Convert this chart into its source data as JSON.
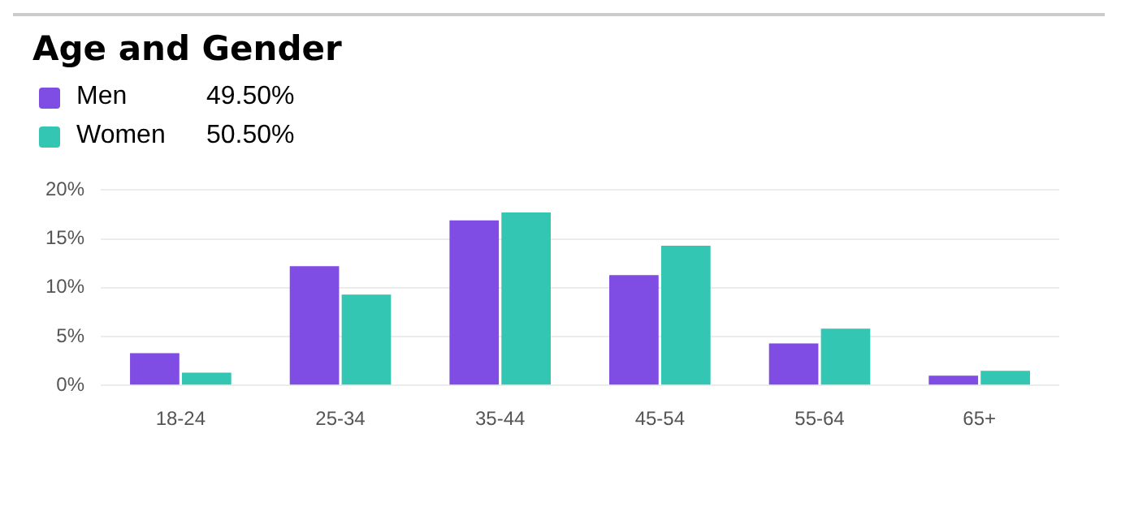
{
  "chart_data": {
    "type": "bar",
    "title": "Age and Gender",
    "categories": [
      "18-24",
      "25-34",
      "35-44",
      "45-54",
      "55-64",
      "65+"
    ],
    "series": [
      {
        "name": "Men",
        "color": "#7f4de3",
        "values": [
          3.3,
          12.2,
          16.9,
          11.3,
          4.3,
          1.0
        ]
      },
      {
        "name": "Women",
        "color": "#33c6b3",
        "values": [
          1.3,
          9.3,
          17.7,
          14.3,
          5.8,
          1.5
        ]
      }
    ],
    "annotations": [
      "49.50%",
      "50.50%"
    ],
    "ylim": [
      0,
      20
    ],
    "yticks": [
      {
        "value": 0,
        "label": "0%"
      },
      {
        "value": 5,
        "label": "5%"
      },
      {
        "value": 10,
        "label": "10%"
      },
      {
        "value": 15,
        "label": "15%"
      },
      {
        "value": 20,
        "label": "20%"
      }
    ],
    "grid": "y",
    "legend": "top left"
  }
}
